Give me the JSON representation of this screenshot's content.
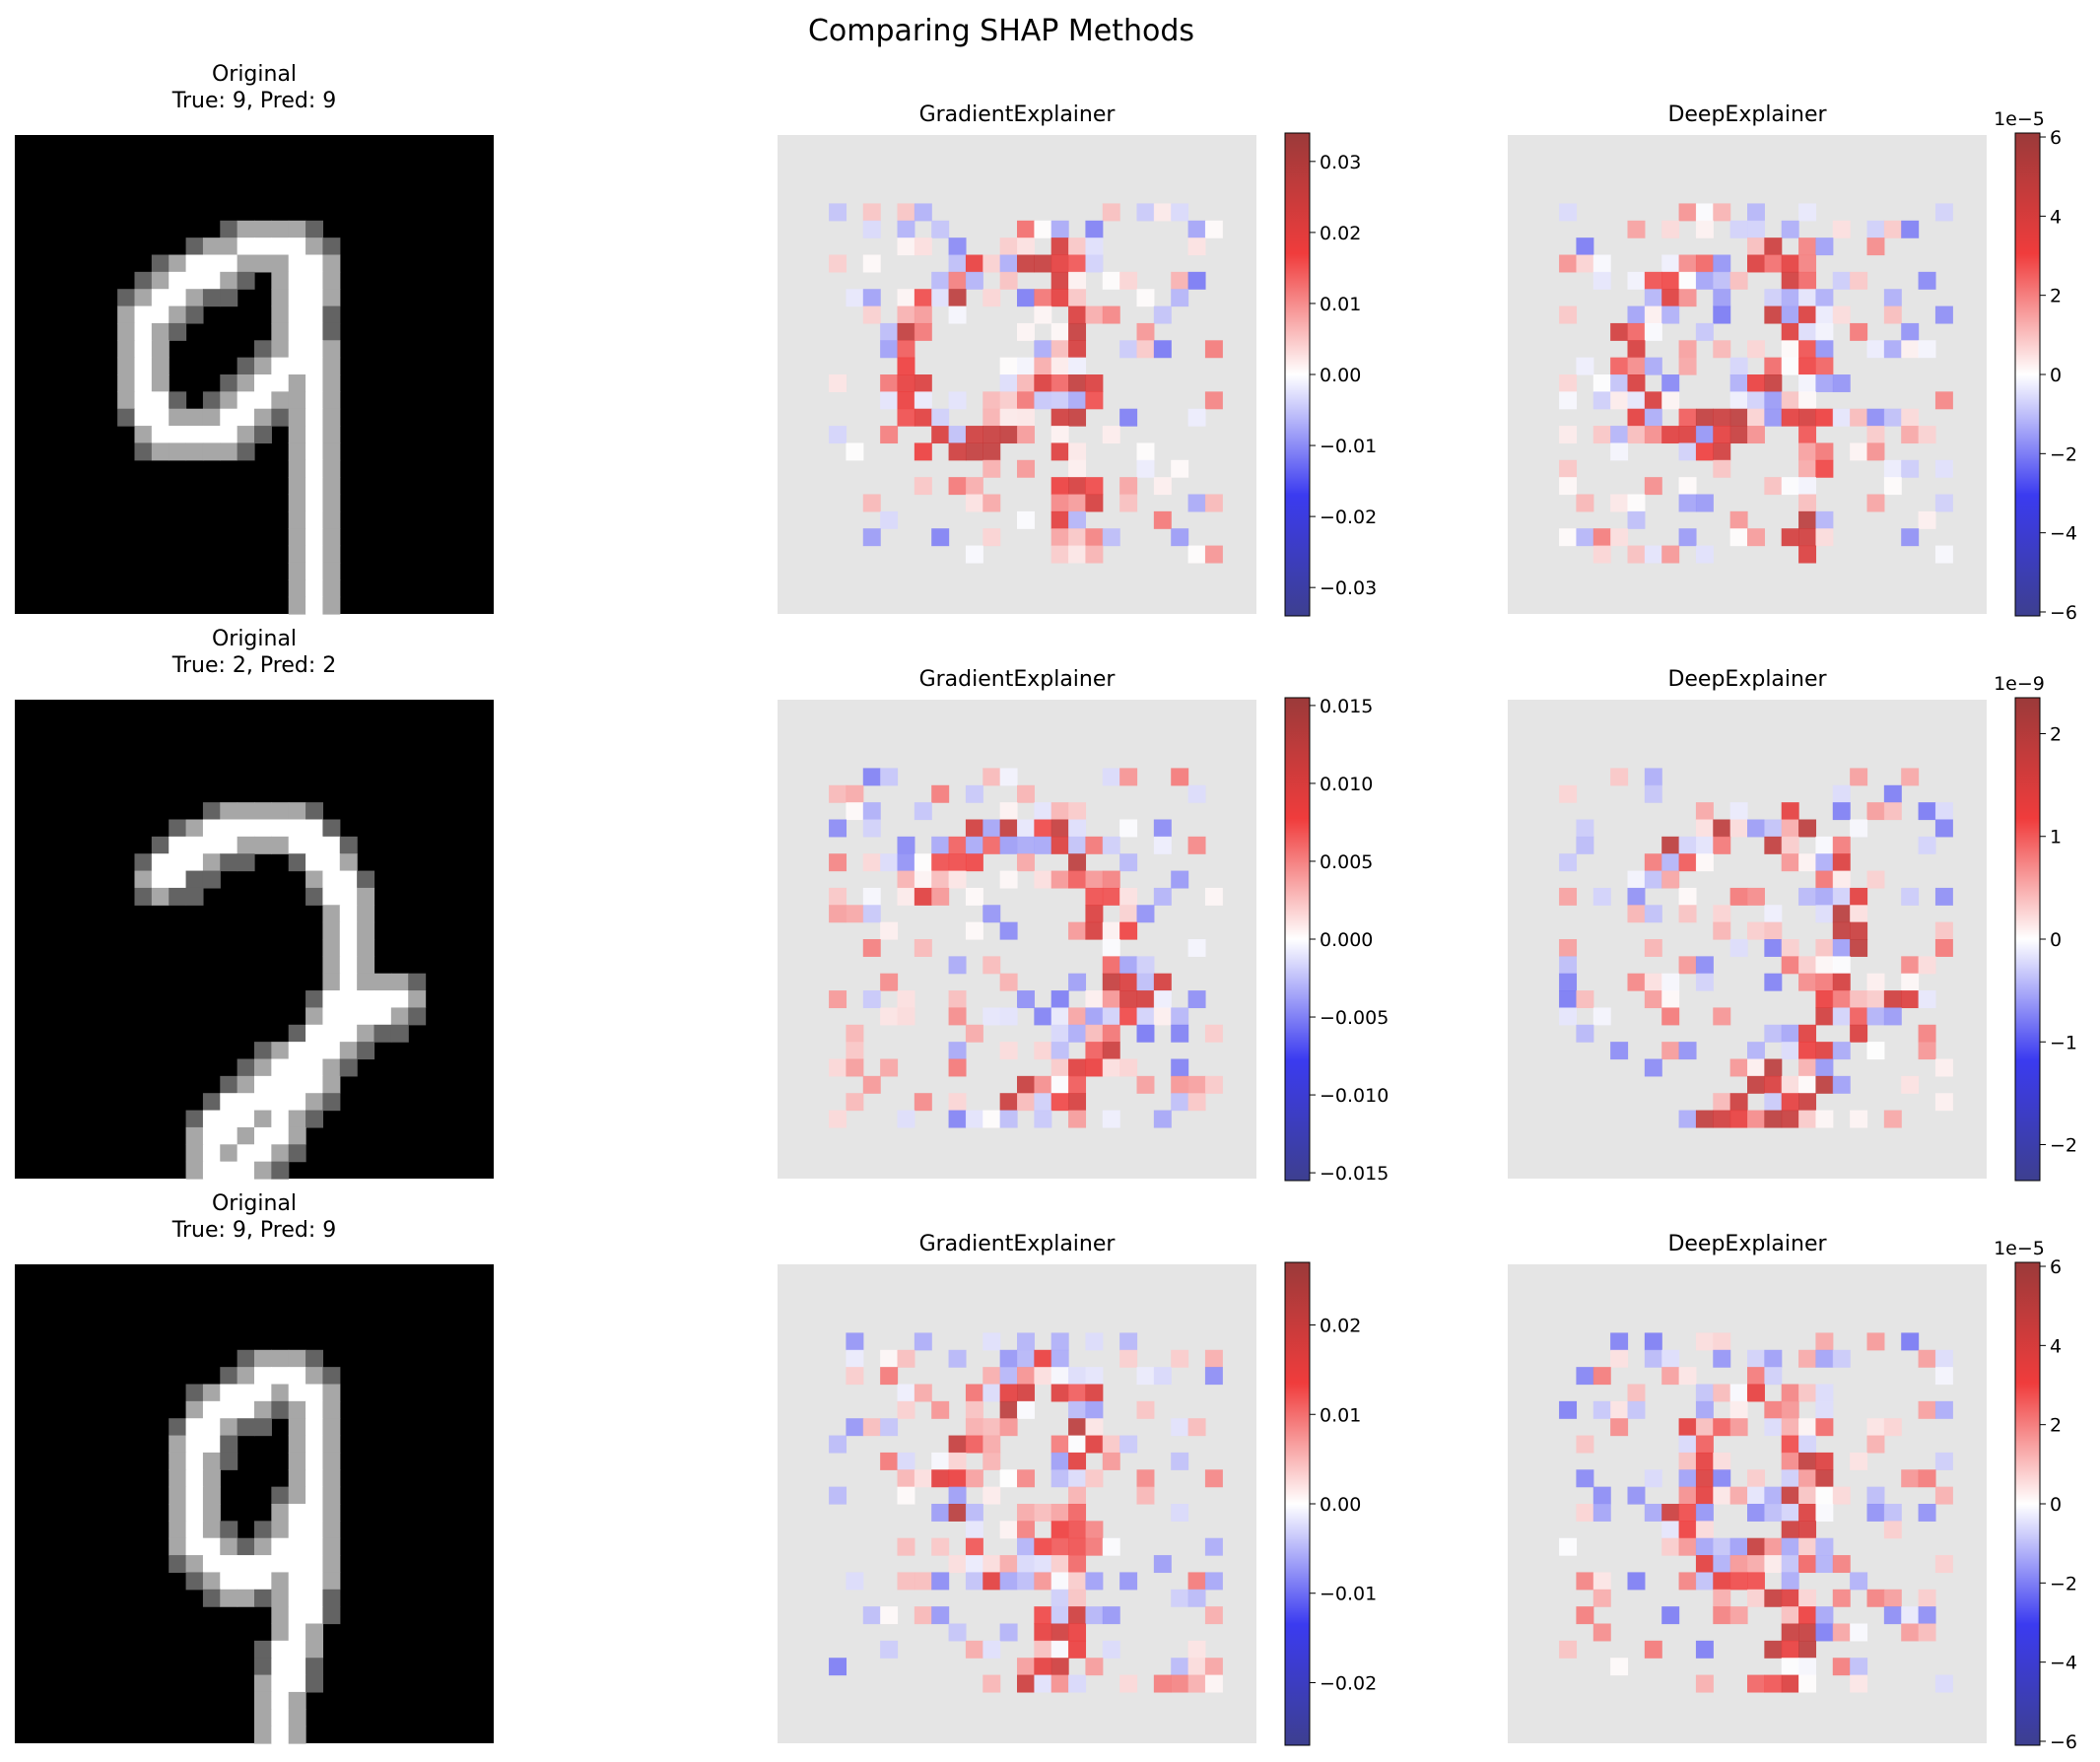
{
  "figure": {
    "suptitle": "Comparing SHAP Methods"
  },
  "colors": {
    "background": "#ffffff",
    "panel_background": "#e5e5e5",
    "digit_background": "#000000",
    "colormap": [
      "#3d3f8f",
      "#3b3bf0",
      "#ffffff",
      "#f03c3c",
      "#9b3a3a"
    ]
  },
  "chart_data": [
    {
      "type": "heatmap",
      "kind": "image",
      "title": "Original",
      "subtitle": "True: 9, Pred: 9",
      "digit": "9",
      "variant": "a"
    },
    {
      "type": "heatmap",
      "title": "GradientExplainer",
      "colorbar": {
        "min": -0.034,
        "max": 0.034,
        "ticks": [
          -0.03,
          -0.02,
          -0.01,
          0.0,
          0.01,
          0.02,
          0.03
        ],
        "tick_labels": [
          "−0.03",
          "−0.02",
          "−0.01",
          "0.00",
          "0.01",
          "0.02",
          "0.03"
        ],
        "offset": ""
      },
      "seed": 11
    },
    {
      "type": "heatmap",
      "title": "DeepExplainer",
      "colorbar": {
        "min": -6.1,
        "max": 6.1,
        "ticks": [
          -6,
          -4,
          -2,
          0,
          2,
          4,
          6
        ],
        "tick_labels": [
          "−6",
          "−4",
          "−2",
          "0",
          "2",
          "4",
          "6"
        ],
        "offset": "1e−5"
      },
      "seed": 23
    },
    {
      "type": "heatmap",
      "kind": "image",
      "title": "Original",
      "subtitle": "True: 2, Pred: 2",
      "digit": "2",
      "variant": "b"
    },
    {
      "type": "heatmap",
      "title": "GradientExplainer",
      "colorbar": {
        "min": -0.0155,
        "max": 0.0155,
        "ticks": [
          -0.015,
          -0.01,
          -0.005,
          0.0,
          0.005,
          0.01,
          0.015
        ],
        "tick_labels": [
          "−0.015",
          "−0.010",
          "−0.005",
          "0.000",
          "0.005",
          "0.010",
          "0.015"
        ],
        "offset": ""
      },
      "seed": 37
    },
    {
      "type": "heatmap",
      "title": "DeepExplainer",
      "colorbar": {
        "min": -2.35,
        "max": 2.35,
        "ticks": [
          -2,
          -1,
          0,
          1,
          2
        ],
        "tick_labels": [
          "−2",
          "−1",
          "0",
          "1",
          "2"
        ],
        "offset": "1e−9"
      },
      "seed": 41
    },
    {
      "type": "heatmap",
      "kind": "image",
      "title": "Original",
      "subtitle": "True: 9, Pred: 9",
      "digit": "9",
      "variant": "c"
    },
    {
      "type": "heatmap",
      "title": "GradientExplainer",
      "colorbar": {
        "min": -0.027,
        "max": 0.027,
        "ticks": [
          -0.02,
          -0.01,
          0.0,
          0.01,
          0.02
        ],
        "tick_labels": [
          "−0.02",
          "−0.01",
          "0.00",
          "0.01",
          "0.02"
        ],
        "offset": ""
      },
      "seed": 53
    },
    {
      "type": "heatmap",
      "title": "DeepExplainer",
      "colorbar": {
        "min": -6.1,
        "max": 6.1,
        "ticks": [
          -6,
          -4,
          -2,
          0,
          2,
          4,
          6
        ],
        "tick_labels": [
          "−6",
          "−4",
          "−2",
          "0",
          "2",
          "4",
          "6"
        ],
        "offset": "1e−5"
      },
      "seed": 67
    }
  ]
}
